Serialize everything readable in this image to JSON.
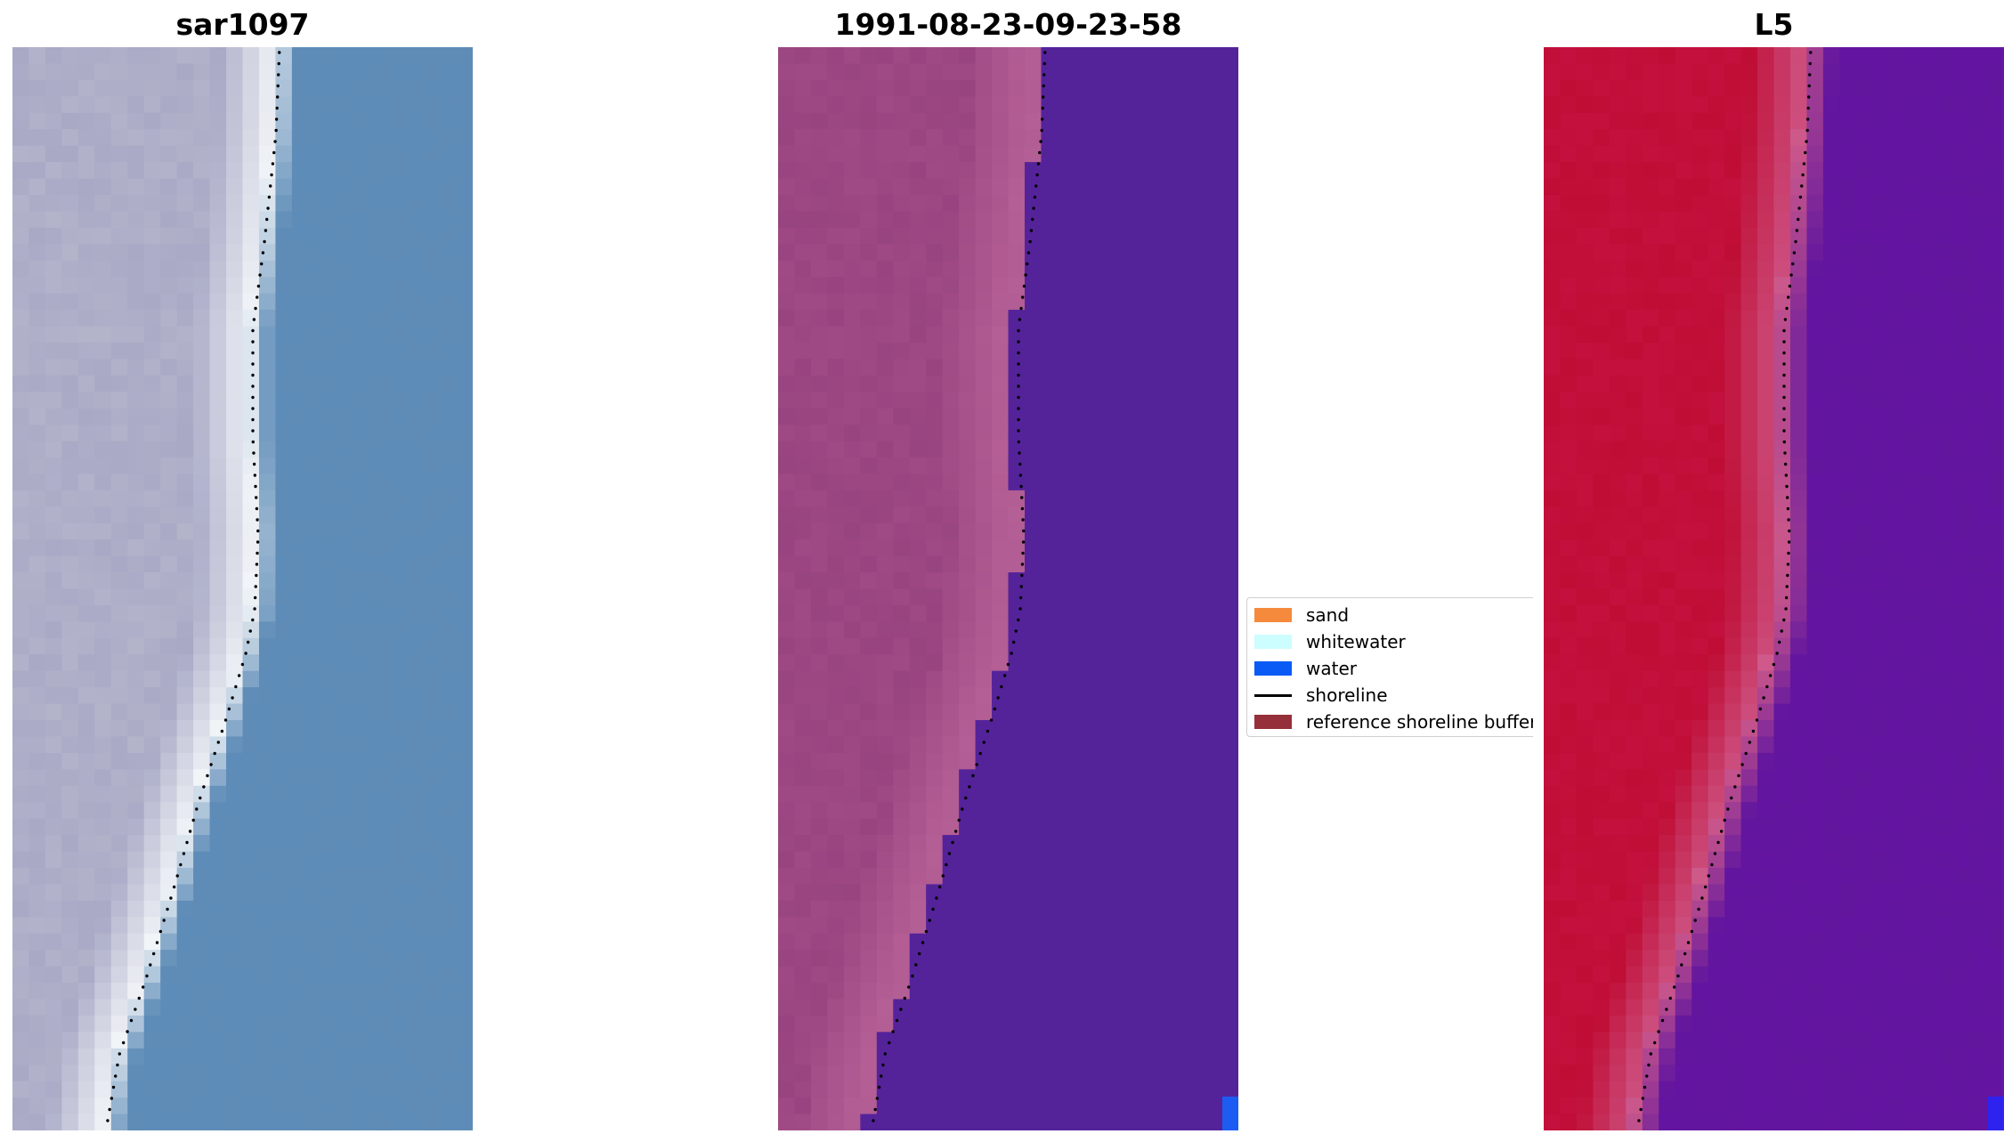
{
  "panels": [
    {
      "id": "sar",
      "title": "sar1097",
      "colormap": "rgb-composite"
    },
    {
      "id": "classified",
      "title": "1991-08-23-09-23-58",
      "colormap": "classification-overlay"
    },
    {
      "id": "mndwi",
      "title": "L5",
      "colormap": "red-blue"
    }
  ],
  "legend": {
    "entries": [
      {
        "label": "sand",
        "kind": "patch",
        "color": "#f58a3c"
      },
      {
        "label": "whitewater",
        "kind": "patch",
        "color": "#ccfdff"
      },
      {
        "label": "water",
        "kind": "patch",
        "color": "#0a5af5"
      },
      {
        "label": "shoreline",
        "kind": "line",
        "color": "#000000"
      },
      {
        "label": "reference shoreline buffer",
        "kind": "patch",
        "color": "#95303a"
      }
    ]
  },
  "colors": {
    "sar_sand": "#a9a9c6",
    "sar_surf": "#f2f5f8",
    "sar_water": "#5e8cb7",
    "class_sand": "#a04a85",
    "class_sand_light": "#b45f95",
    "class_water": "#54239a",
    "class_water_flag": "#1c5cf2",
    "l5_land": "#bf0d35",
    "l5_edge": "#cf5a8a",
    "l5_water": "#62169e",
    "l5_water_flag": "#2d22ee",
    "shoreline": "#000000"
  }
}
